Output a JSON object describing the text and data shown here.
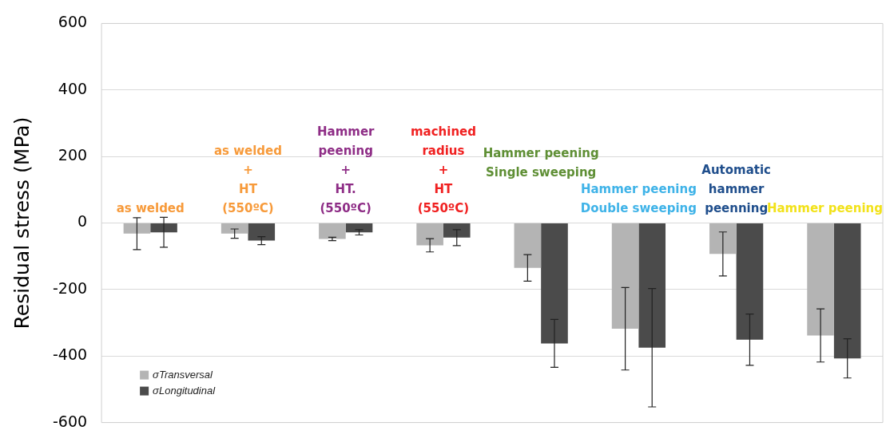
{
  "chart_data": {
    "type": "bar",
    "ylabel": "Residual stress (MPa)",
    "categories": [
      "as welded",
      "as welded\n+\nHT\n(550ºC)",
      "Hammer\npeening\n+\nHT.\n(550ºC)",
      "machined\nradius\n+\nHT\n(550ºC)",
      "Hammer peening\nSingle sweeping",
      "Hammer peening\nDouble sweeping",
      "Automatic\nhammer\npeenning",
      "Hammer peening"
    ],
    "series": [
      {
        "name": "σTransversal",
        "color": "#b4b4b4",
        "values": [
          -32,
          -32,
          -48,
          -67,
          -135,
          -318,
          -93,
          -338
        ],
        "errors": [
          48,
          14,
          5,
          20,
          40,
          124,
          66,
          80
        ]
      },
      {
        "name": "σLongitudinal",
        "color": "#4b4b4b",
        "values": [
          -28,
          -53,
          -28,
          -44,
          -362,
          -375,
          -351,
          -407
        ],
        "errors": [
          45,
          12,
          8,
          24,
          72,
          178,
          77,
          59
        ]
      }
    ],
    "ylim": [
      -600,
      600
    ],
    "yticks": [
      -600,
      -400,
      -200,
      0,
      200,
      400,
      600
    ],
    "grid": "y",
    "legend": "bottom left",
    "tick_labels": "y"
  }
}
